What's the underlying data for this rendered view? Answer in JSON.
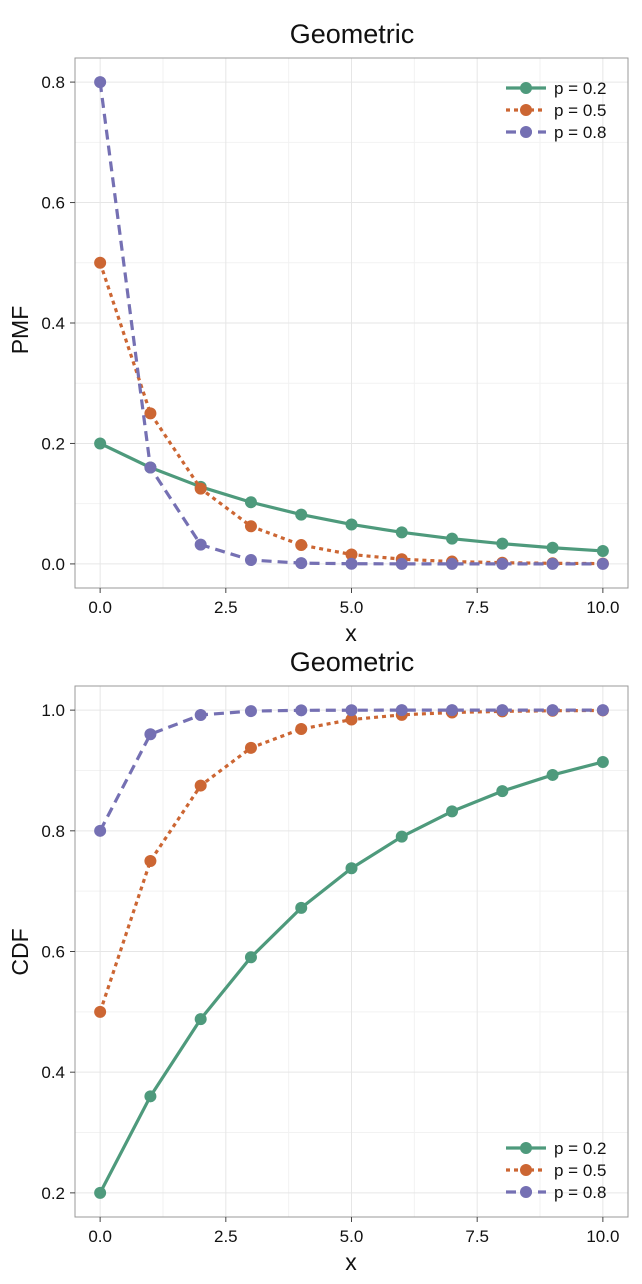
{
  "chart_data": [
    {
      "type": "line",
      "title": "Geometric",
      "xlabel": "x",
      "ylabel": "PMF",
      "xlim": [
        -0.5,
        10.5
      ],
      "ylim": [
        -0.04,
        0.84
      ],
      "x_ticks": [
        0,
        2.5,
        5,
        7.5,
        10
      ],
      "x_tick_labels": [
        "0.0",
        "2.5",
        "5.0",
        "7.5",
        "10.0"
      ],
      "y_ticks": [
        0,
        0.2,
        0.4,
        0.6,
        0.8
      ],
      "y_tick_labels": [
        "0.0",
        "0.2",
        "0.4",
        "0.6",
        "0.8"
      ],
      "grid": true,
      "legend_position": "top-right",
      "x": [
        0,
        1,
        2,
        3,
        4,
        5,
        6,
        7,
        8,
        9,
        10
      ],
      "series": [
        {
          "name": "p = 0.2",
          "color": "#4e9a7c",
          "dash": "solid",
          "values": [
            0.2,
            0.16,
            0.128,
            0.1024,
            0.0819,
            0.0655,
            0.0524,
            0.0419,
            0.0336,
            0.0268,
            0.0215
          ]
        },
        {
          "name": "p = 0.5",
          "color": "#cc6633",
          "dash": "dotted",
          "values": [
            0.5,
            0.25,
            0.125,
            0.0625,
            0.0313,
            0.0156,
            0.0078,
            0.0039,
            0.002,
            0.001,
            0.0005
          ]
        },
        {
          "name": "p = 0.8",
          "color": "#7570b3",
          "dash": "dashed",
          "values": [
            0.8,
            0.16,
            0.032,
            0.0064,
            0.0013,
            0.0003,
            0.0001,
            0.0,
            0.0,
            0.0,
            0.0
          ]
        }
      ]
    },
    {
      "type": "line",
      "title": "Geometric",
      "xlabel": "x",
      "ylabel": "CDF",
      "xlim": [
        -0.5,
        10.5
      ],
      "ylim": [
        0.16,
        1.04
      ],
      "x_ticks": [
        0,
        2.5,
        5,
        7.5,
        10
      ],
      "x_tick_labels": [
        "0.0",
        "2.5",
        "5.0",
        "7.5",
        "10.0"
      ],
      "y_ticks": [
        0.2,
        0.4,
        0.6,
        0.8,
        1.0
      ],
      "y_tick_labels": [
        "0.2",
        "0.4",
        "0.6",
        "0.8",
        "1.0"
      ],
      "grid": true,
      "legend_position": "bottom-right",
      "x": [
        0,
        1,
        2,
        3,
        4,
        5,
        6,
        7,
        8,
        9,
        10
      ],
      "series": [
        {
          "name": "p = 0.2",
          "color": "#4e9a7c",
          "dash": "solid",
          "values": [
            0.2,
            0.36,
            0.488,
            0.5904,
            0.6723,
            0.7379,
            0.7903,
            0.8322,
            0.8658,
            0.8926,
            0.9141
          ]
        },
        {
          "name": "p = 0.5",
          "color": "#cc6633",
          "dash": "dotted",
          "values": [
            0.5,
            0.75,
            0.875,
            0.9375,
            0.9688,
            0.9844,
            0.9922,
            0.9961,
            0.998,
            0.999,
            0.9995
          ]
        },
        {
          "name": "p = 0.8",
          "color": "#7570b3",
          "dash": "dashed",
          "values": [
            0.8,
            0.96,
            0.992,
            0.9984,
            0.9997,
            0.9999,
            1.0,
            1.0,
            1.0,
            1.0,
            1.0
          ]
        }
      ]
    }
  ]
}
